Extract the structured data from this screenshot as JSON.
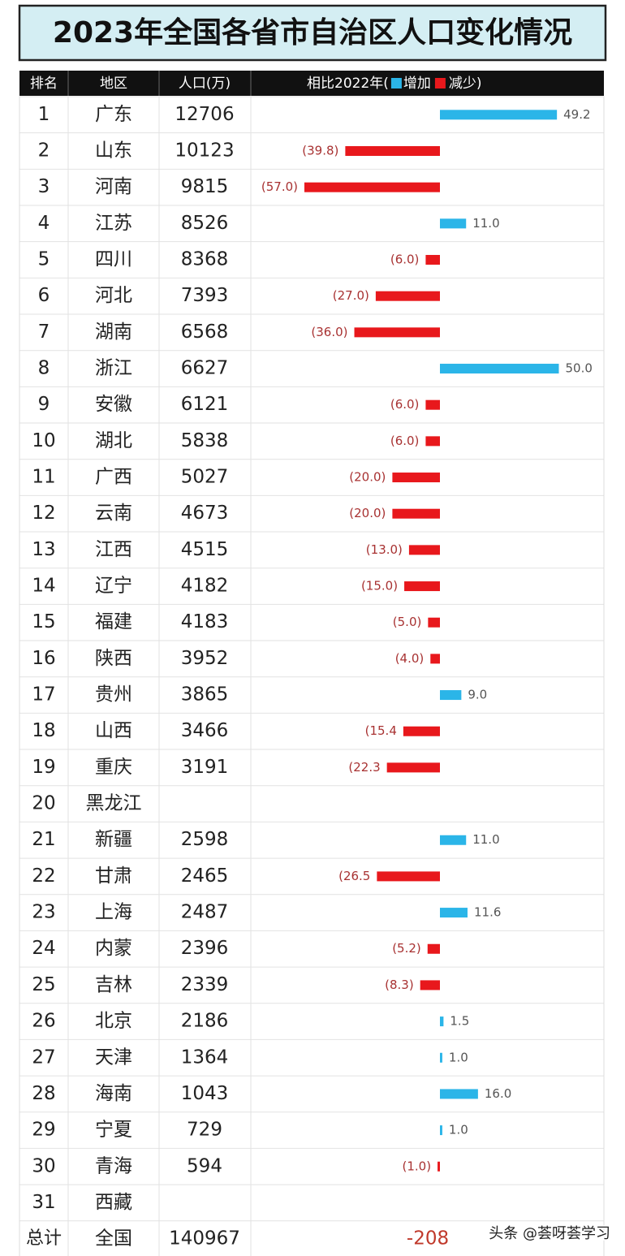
{
  "title": "2023年全国各省市自治区人口变化情况",
  "table": {
    "columns": [
      "排名",
      "地区",
      "人口(万)"
    ],
    "change_column": {
      "text": "相比2022年(",
      "increase": "增加",
      "decrease": "减少",
      "close": ")"
    },
    "increase_color": "#2bb5e8",
    "decrease_color": "#e8181c",
    "rows": [
      [
        1,
        "广东",
        12706
      ],
      [
        2,
        "山东",
        10123
      ],
      [
        3,
        "河南",
        9815
      ],
      [
        4,
        "江苏",
        8526
      ],
      [
        5,
        "四川",
        8368
      ],
      [
        6,
        "河北",
        7393
      ],
      [
        7,
        "湖南",
        6568
      ],
      [
        8,
        "浙江",
        6627
      ],
      [
        9,
        "安徽",
        6121
      ],
      [
        10,
        "湖北",
        5838
      ],
      [
        11,
        "广西",
        5027
      ],
      [
        12,
        "云南",
        4673
      ],
      [
        13,
        "江西",
        4515
      ],
      [
        14,
        "辽宁",
        4182
      ],
      [
        15,
        "福建",
        4183
      ],
      [
        16,
        "陕西",
        3952
      ],
      [
        17,
        "贵州",
        3865
      ],
      [
        18,
        "山西",
        3466
      ],
      [
        19,
        "重庆",
        3191
      ],
      [
        20,
        "黑龙江",
        null
      ],
      [
        21,
        "新疆",
        2598
      ],
      [
        22,
        "甘肃",
        2465
      ],
      [
        23,
        "上海",
        2487
      ],
      [
        24,
        "内蒙",
        2396
      ],
      [
        25,
        "吉林",
        2339
      ],
      [
        26,
        "北京",
        2186
      ],
      [
        27,
        "天津",
        1364
      ],
      [
        28,
        "海南",
        1043
      ],
      [
        29,
        "宁夏",
        729
      ],
      [
        30,
        "青海",
        594
      ],
      [
        31,
        "西藏",
        null
      ]
    ],
    "changes": [
      49.2,
      -39.8,
      -57.0,
      11.0,
      -6.0,
      -27.0,
      -36.0,
      50.0,
      -6.0,
      -6.0,
      -20.0,
      -20.0,
      -13.0,
      -15.0,
      -5.0,
      -4.0,
      9.0,
      -15.4,
      -22.3,
      null,
      11.0,
      -26.5,
      11.6,
      -5.2,
      -8.3,
      1.5,
      1.0,
      16.0,
      1.0,
      -1.0,
      null
    ],
    "change_labels": [
      "49.2",
      "(39.8)",
      "(57.0)",
      "11.0",
      "(6.0)",
      "(27.0)",
      "(36.0)",
      "50.0",
      "(6.0)",
      "(6.0)",
      "(20.0)",
      "(20.0)",
      "(13.0)",
      "(15.0)",
      "(5.0)",
      "(4.0)",
      "9.0",
      "(15.4",
      "(22.3",
      null,
      "11.0",
      "(26.5",
      "11.6",
      "(5.2)",
      "(8.3)",
      "1.5",
      "1.0",
      "16.0",
      "1.0",
      "(1.0)",
      null
    ],
    "total": [
      "总计",
      "全国",
      140967,
      -208
    ]
  },
  "watermark": "头条 @荟呀荟学习"
}
